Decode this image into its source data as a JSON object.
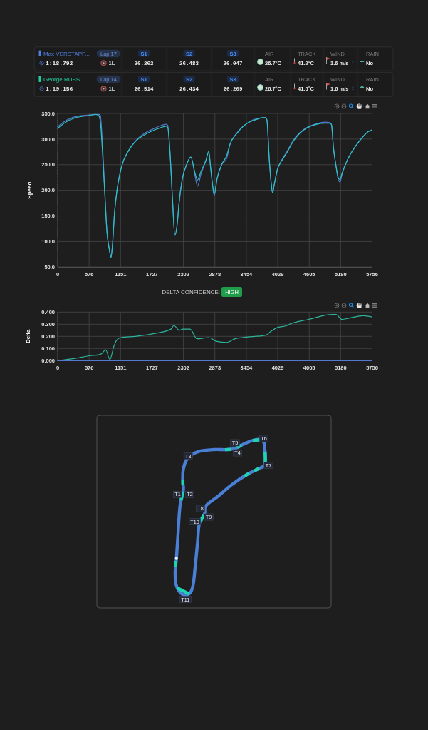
{
  "chart_data": [
    {
      "type": "other",
      "annotations": [
        "Max VERSTAPP...",
        "Lap 17",
        "1:18.792",
        "1L",
        "S1",
        "26.262",
        "S2",
        "26.483",
        "S3",
        "26.047",
        "AIR",
        "26.7°C",
        "TRACK",
        "41.2°C",
        "WIND",
        "1.6 m/s",
        "RAIN",
        "No",
        "George RUSS...",
        "Lap 14",
        "1:19.156",
        "1L",
        "S1",
        "26.514",
        "S2",
        "26.434",
        "S3",
        "26.209",
        "AIR",
        "26.7°C",
        "TRACK",
        "41.5°C",
        "WIND",
        "1.6 m/s",
        "RAIN",
        "No"
      ],
      "colors": [
        "#4f7fdc",
        "#1fcf9f"
      ]
    },
    {
      "type": "line",
      "ylabel": "Speed",
      "x": [
        0,
        118,
        336,
        584,
        685,
        750,
        780,
        815,
        859,
        903,
        946,
        977,
        1003,
        1042,
        1086,
        1164,
        1295,
        1448,
        1600,
        1775,
        1905,
        1993,
        2014,
        2058,
        2102,
        2145,
        2189,
        2219,
        2276,
        2363,
        2437,
        2516,
        2559,
        2625,
        2712,
        2766,
        2800,
        2835,
        2866,
        2918,
        3005,
        3092,
        3157,
        3266,
        3396,
        3526,
        3657,
        3765,
        3809,
        3831,
        3874,
        3909,
        3935,
        3961,
        4026,
        4092,
        4200,
        4309,
        4439,
        4570,
        4744,
        4896,
        4983,
        5013,
        5048,
        5091,
        5143,
        5169,
        5204,
        5308,
        5439,
        5569,
        5678,
        5756
      ],
      "xlim": [
        0,
        5756
      ],
      "xticks": [
        0,
        576,
        1151,
        1727,
        2302,
        2878,
        3454,
        4029,
        4605,
        5180,
        5756
      ],
      "ylim": [
        50,
        350
      ],
      "yticks": [
        {
          "value": 50,
          "label": "50.0"
        },
        {
          "value": 100,
          "label": "100.0"
        },
        {
          "value": 150,
          "label": "150.0"
        },
        {
          "value": 200,
          "label": "200.0"
        },
        {
          "value": 250,
          "label": "250.0"
        },
        {
          "value": 300,
          "label": "300.0"
        },
        {
          "value": 350,
          "label": "350.0"
        }
      ],
      "grid": true,
      "series": [
        {
          "color": "#5578d2",
          "values": [
            324,
            334,
            344,
            347,
            348,
            348,
            347,
            300,
            205,
            118,
            85,
            69,
            93,
            158,
            200,
            244,
            277,
            299,
            312,
            321,
            327,
            329,
            327,
            272,
            182,
            112,
            135,
            172,
            219,
            251,
            265,
            228,
            208,
            232,
            257,
            275,
            243,
            210,
            190,
            222,
            250,
            262,
            290,
            310,
            325,
            335,
            340,
            342,
            342,
            337,
            260,
            213,
            195,
            209,
            242,
            257,
            276,
            297,
            313,
            323,
            330,
            333,
            332,
            328,
            284,
            250,
            219,
            216,
            230,
            260,
            284,
            302,
            314,
            318
          ]
        },
        {
          "color": "#2cc2c4",
          "values": [
            321,
            331,
            342,
            346,
            348,
            346,
            335,
            284,
            200,
            117,
            84,
            69,
            93,
            158,
            200,
            244,
            277,
            298,
            309,
            318,
            323,
            325,
            323,
            270,
            182,
            112,
            135,
            172,
            219,
            251,
            265,
            233,
            220,
            237,
            258,
            276,
            245,
            212,
            192,
            223,
            251,
            267,
            291,
            309,
            325,
            334,
            339,
            342,
            342,
            337,
            260,
            214,
            195,
            209,
            242,
            256,
            274,
            295,
            312,
            322,
            329,
            331,
            331,
            328,
            284,
            251,
            223,
            221,
            233,
            260,
            284,
            302,
            314,
            318
          ]
        }
      ]
    },
    {
      "type": "line",
      "title": "DELTA CONFIDENCE:",
      "annotations": [
        "HIGH"
      ],
      "ylabel": "Delta",
      "xlim": [
        0,
        5756
      ],
      "xticks": [
        0,
        576,
        1151,
        1727,
        2302,
        2878,
        3454,
        4029,
        4605,
        5180,
        5756
      ],
      "ylim": [
        0,
        0.4
      ],
      "yticks": [
        {
          "value": 0,
          "label": "0.000"
        },
        {
          "value": 0.1,
          "label": "0.100"
        },
        {
          "value": 0.2,
          "label": "0.200"
        },
        {
          "value": 0.3,
          "label": "0.300"
        },
        {
          "value": 0.4,
          "label": "0.400"
        }
      ],
      "grid": true,
      "series": [
        {
          "color": "#2cb59c",
          "x": [
            0,
            335,
            583,
            769,
            813,
            878,
            956,
            1030,
            1082,
            1161,
            1422,
            1726,
            2074,
            2126,
            2226,
            2291,
            2422,
            2552,
            2769,
            2900,
            3095,
            3247,
            3378,
            3813,
            3900,
            4008,
            4204,
            4247,
            4595,
            5030,
            5095,
            5204,
            5334,
            5595,
            5756
          ],
          "values": [
            0,
            0.02,
            0.04,
            0.05,
            0.06,
            0.09,
            0.01,
            0.12,
            0.17,
            0.19,
            0.2,
            0.22,
            0.26,
            0.29,
            0.25,
            0.26,
            0.26,
            0.18,
            0.19,
            0.16,
            0.15,
            0.18,
            0.19,
            0.21,
            0.24,
            0.27,
            0.29,
            0.3,
            0.34,
            0.38,
            0.38,
            0.34,
            0.35,
            0.37,
            0.36
          ]
        },
        {
          "color": "#5578d2",
          "x": [
            0,
            5756
          ],
          "values": [
            0,
            0
          ]
        }
      ]
    },
    {
      "type": "other",
      "annotations": [
        "T1",
        "T2",
        "T3",
        "T4",
        "T5",
        "T6",
        "T7",
        "T8",
        "T9",
        "T10",
        "T11"
      ]
    }
  ]
}
